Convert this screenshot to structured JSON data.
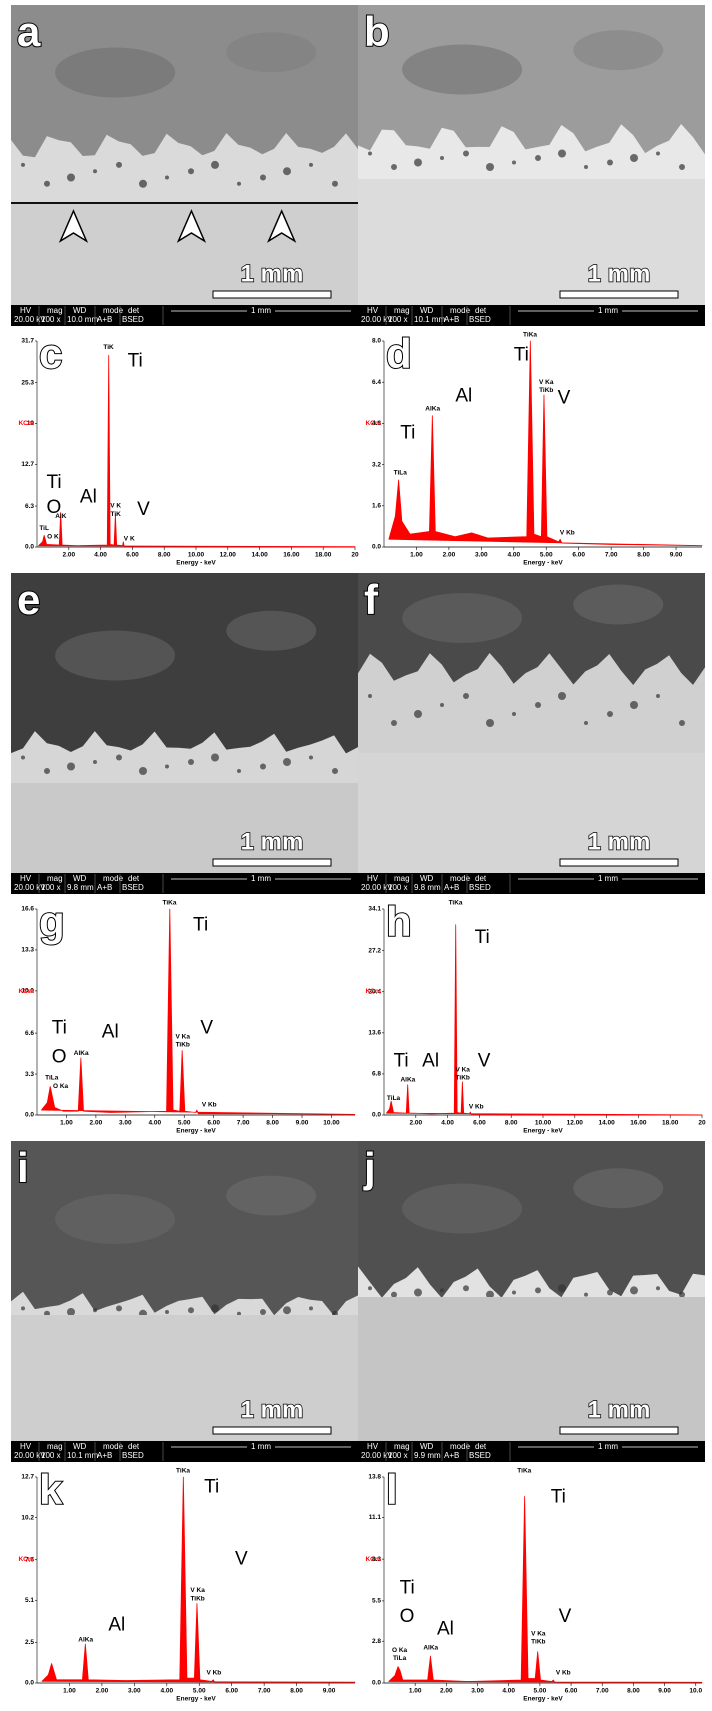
{
  "micrographs": [
    {
      "label": "a",
      "scale_bar": "1 mm",
      "info_headers": [
        "HV",
        "mag",
        "WD",
        "mode",
        "det"
      ],
      "info_values": [
        "20.00 kV",
        "100 x",
        "10.0 mm",
        "A+B",
        "BSED"
      ],
      "info_scale": "1 mm"
    },
    {
      "label": "b",
      "scale_bar": "1 mm",
      "info_headers": [
        "HV",
        "mag",
        "WD",
        "mode",
        "det"
      ],
      "info_values": [
        "20.00 kV",
        "100 x",
        "10.1 mm",
        "A+B",
        "BSED"
      ],
      "info_scale": "1 mm"
    },
    {
      "label": "e",
      "scale_bar": "1 mm",
      "info_headers": [
        "HV",
        "mag",
        "WD",
        "mode",
        "det"
      ],
      "info_values": [
        "20.00 kV",
        "100 x",
        "9.8 mm",
        "A+B",
        "BSED"
      ],
      "info_scale": "1 mm"
    },
    {
      "label": "f",
      "scale_bar": "1 mm",
      "info_headers": [
        "HV",
        "mag",
        "WD",
        "mode",
        "det"
      ],
      "info_values": [
        "20.00 kV",
        "100 x",
        "9.8 mm",
        "A+B",
        "BSED"
      ],
      "info_scale": "1 mm"
    },
    {
      "label": "i",
      "scale_bar": "1 mm",
      "info_headers": [
        "HV",
        "mag",
        "WD",
        "mode",
        "det"
      ],
      "info_values": [
        "20.00 kV",
        "100 x",
        "10.1 mm",
        "A+B",
        "BSED"
      ],
      "info_scale": "1 mm"
    },
    {
      "label": "j",
      "scale_bar": "1 mm",
      "info_headers": [
        "HV",
        "mag",
        "WD",
        "mode",
        "det"
      ],
      "info_values": [
        "20.00 kV",
        "100 x",
        "9.9 mm",
        "A+B",
        "BSED"
      ],
      "info_scale": "1 mm"
    }
  ],
  "chart_data": [
    {
      "type": "spectrum",
      "panel": "c",
      "color": "#ff0000",
      "xlabel": "Energy - keV",
      "ylabel": "KCnt",
      "x": [
        0.1,
        0.35,
        0.45,
        0.52,
        0.6,
        1.4,
        1.49,
        1.58,
        2.5,
        4.42,
        4.51,
        4.6,
        4.85,
        4.93,
        5.01,
        5.38,
        5.43,
        5.48,
        8,
        20
      ],
      "values": [
        0.2,
        0.8,
        1.8,
        1.2,
        0.4,
        0.3,
        5.3,
        0.3,
        0.2,
        0.3,
        29.5,
        0.4,
        0.3,
        5.0,
        0.3,
        0.2,
        0.8,
        0.1,
        0.1,
        0.05
      ],
      "xlim": [
        0,
        20
      ],
      "ylim": [
        0,
        31.7
      ],
      "xticks": [
        {
          "value": 2,
          "label": "2.00"
        },
        {
          "value": 4,
          "label": "4.00"
        },
        {
          "value": 6,
          "label": "6.00"
        },
        {
          "value": 8,
          "label": "8.00"
        },
        {
          "value": 10,
          "label": "10.00"
        },
        {
          "value": 12,
          "label": "12.00"
        },
        {
          "value": 14,
          "label": "14.00"
        },
        {
          "value": 16,
          "label": "16.00"
        },
        {
          "value": 18,
          "label": "18.00"
        },
        20
      ],
      "yticks": [
        {
          "value": 0,
          "label": "0.0"
        },
        6.3,
        12.7,
        19.0,
        25.3,
        31.7
      ],
      "annotations": [
        "TiK",
        "Ti",
        "V K",
        "TiK",
        "V",
        "AlK",
        "Al",
        "Ti",
        "O",
        "TiL",
        "O K",
        "V K"
      ]
    },
    {
      "type": "spectrum",
      "panel": "d",
      "color": "#ff0000",
      "xlabel": "Energy - keV",
      "ylabel": "KCnt",
      "x": [
        0.15,
        0.35,
        0.45,
        0.55,
        0.8,
        1.4,
        1.49,
        1.58,
        2.2,
        2.7,
        3.2,
        4.4,
        4.51,
        4.62,
        4.85,
        4.93,
        5.02,
        5.38,
        5.43,
        5.48,
        7,
        9.8
      ],
      "values": [
        0.3,
        1.2,
        2.6,
        1.0,
        0.5,
        0.6,
        5.1,
        0.6,
        0.4,
        0.55,
        0.35,
        0.4,
        8.0,
        0.5,
        0.4,
        5.9,
        0.4,
        0.2,
        0.3,
        0.15,
        0.1,
        0.05
      ],
      "xlim": [
        0,
        9.8
      ],
      "ylim": [
        0,
        8
      ],
      "xticks": [
        {
          "value": 1,
          "label": "1.00"
        },
        {
          "value": 2,
          "label": "2.00"
        },
        {
          "value": 3,
          "label": "3.00"
        },
        {
          "value": 4,
          "label": "4.00"
        },
        {
          "value": 5,
          "label": "5.00"
        },
        {
          "value": 6,
          "label": "6.00"
        },
        {
          "value": 7,
          "label": "7.00"
        },
        {
          "value": 8,
          "label": "8.00"
        },
        {
          "value": 9,
          "label": "9.00"
        }
      ],
      "yticks": [
        {
          "value": 0,
          "label": "0.0"
        },
        1.6,
        3.2,
        4.8,
        6.4,
        {
          "value": 8,
          "label": "8.0"
        }
      ],
      "annotations": [
        "TiKa",
        "Ti",
        "V Ka",
        "TiKb",
        "V",
        "AlKa",
        "Al",
        "Ti",
        "TiLa",
        "V Kb"
      ]
    },
    {
      "type": "spectrum",
      "panel": "g",
      "color": "#ff0000",
      "xlabel": "Energy - keV",
      "ylabel": "KCnt",
      "x": [
        0.15,
        0.35,
        0.45,
        0.52,
        0.6,
        0.9,
        1.4,
        1.49,
        1.58,
        2.5,
        4.4,
        4.51,
        4.62,
        4.85,
        4.93,
        5.02,
        5.38,
        5.43,
        5.48,
        8,
        10.8
      ],
      "values": [
        0.4,
        1.0,
        2.3,
        1.5,
        0.6,
        0.3,
        0.3,
        4.6,
        0.3,
        0.2,
        0.3,
        16.6,
        0.4,
        0.3,
        5.2,
        0.3,
        0.2,
        0.4,
        0.1,
        0.1,
        0.05
      ],
      "xlim": [
        0,
        10.8
      ],
      "ylim": [
        0,
        16.6
      ],
      "xticks": [
        {
          "value": 1,
          "label": "1.00"
        },
        {
          "value": 2,
          "label": "2.00"
        },
        {
          "value": 3,
          "label": "3.00"
        },
        {
          "value": 4,
          "label": "4.00"
        },
        {
          "value": 5,
          "label": "5.00"
        },
        {
          "value": 6,
          "label": "6.00"
        },
        {
          "value": 7,
          "label": "7.00"
        },
        {
          "value": 8,
          "label": "8.00"
        },
        {
          "value": 9,
          "label": "9.00"
        },
        {
          "value": 10,
          "label": "10.00"
        }
      ],
      "yticks": [
        {
          "value": 0,
          "label": "0.0"
        },
        3.3,
        6.6,
        {
          "value": 10,
          "label": "10.0"
        },
        13.3,
        16.6
      ],
      "annotations": [
        "TiKa",
        "Ti",
        "V Ka",
        "TiKb",
        "V",
        "AlKa",
        "Al",
        "Ti",
        "O",
        "TiLa",
        "O Ka",
        "V Kb"
      ]
    },
    {
      "type": "spectrum",
      "panel": "h",
      "color": "#ff0000",
      "xlabel": "Energy - keV",
      "ylabel": "KCnt",
      "x": [
        0.15,
        0.35,
        0.45,
        0.6,
        1.4,
        1.49,
        1.58,
        3,
        4.42,
        4.51,
        4.6,
        4.85,
        4.93,
        5.01,
        5.38,
        5.43,
        5.48,
        10,
        20
      ],
      "values": [
        0.3,
        1.0,
        2.3,
        0.4,
        0.3,
        5.0,
        0.3,
        0.2,
        0.3,
        31.5,
        0.4,
        0.3,
        5.5,
        0.3,
        0.2,
        0.5,
        0.1,
        0.05,
        0.02
      ],
      "xlim": [
        0,
        20
      ],
      "ylim": [
        0,
        34.1
      ],
      "xticks": [
        {
          "value": 2,
          "label": "2.00"
        },
        {
          "value": 4,
          "label": "4.00"
        },
        {
          "value": 6,
          "label": "6.00"
        },
        {
          "value": 8,
          "label": "8.00"
        },
        {
          "value": 10,
          "label": "10.00"
        },
        {
          "value": 12,
          "label": "12.00"
        },
        {
          "value": 14,
          "label": "14.00"
        },
        {
          "value": 16,
          "label": "16.00"
        },
        {
          "value": 18,
          "label": "18.00"
        },
        20
      ],
      "yticks": [
        {
          "value": 0,
          "label": "0.0"
        },
        6.8,
        13.6,
        20.4,
        27.2,
        34.1
      ],
      "annotations": [
        "TiKa",
        "Ti",
        "V Ka",
        "TiKb",
        "V",
        "AlKa",
        "Al",
        "Ti",
        "TiLa",
        "V Kb"
      ]
    },
    {
      "type": "spectrum",
      "panel": "k",
      "color": "#ff0000",
      "xlabel": "Energy - keV",
      "ylabel": "KCnt",
      "x": [
        0.15,
        0.35,
        0.45,
        0.6,
        1.4,
        1.49,
        1.58,
        2.7,
        4.4,
        4.51,
        4.62,
        4.85,
        4.93,
        5.02,
        5.38,
        5.43,
        5.48,
        9.8
      ],
      "values": [
        0.1,
        0.5,
        1.2,
        0.2,
        0.2,
        2.4,
        0.2,
        0.15,
        0.2,
        12.7,
        0.3,
        0.3,
        4.9,
        0.2,
        0.1,
        0.2,
        0.05,
        0.05
      ],
      "xlim": [
        0,
        9.8
      ],
      "ylim": [
        0,
        12.7
      ],
      "xticks": [
        {
          "value": 1,
          "label": "1.00"
        },
        {
          "value": 2,
          "label": "2.00"
        },
        {
          "value": 3,
          "label": "3.00"
        },
        {
          "value": 4,
          "label": "4.00"
        },
        {
          "value": 5,
          "label": "5.00"
        },
        {
          "value": 6,
          "label": "6.00"
        },
        {
          "value": 7,
          "label": "7.00"
        },
        {
          "value": 8,
          "label": "8.00"
        },
        {
          "value": 9,
          "label": "9.00"
        }
      ],
      "yticks": [
        {
          "value": 0,
          "label": "0.0"
        },
        2.5,
        5.1,
        7.6,
        10.2,
        12.7
      ],
      "annotations": [
        "TiKa",
        "Ti",
        "V Ka",
        "TiKb",
        "V",
        "AlKa",
        "Al",
        "V Kb"
      ]
    },
    {
      "type": "spectrum",
      "panel": "l",
      "color": "#ff0000",
      "xlabel": "Energy - keV",
      "ylabel": "KCnt",
      "x": [
        0.15,
        0.35,
        0.45,
        0.52,
        0.6,
        1.4,
        1.49,
        1.58,
        2.7,
        4.4,
        4.51,
        4.62,
        4.85,
        4.93,
        5.02,
        5.38,
        5.43,
        5.48,
        10.2
      ],
      "values": [
        0.1,
        0.5,
        1.1,
        0.8,
        0.2,
        0.2,
        1.8,
        0.2,
        0.1,
        0.2,
        12.5,
        0.3,
        0.3,
        2.1,
        0.2,
        0.1,
        0.2,
        0.05,
        0.05
      ],
      "xlim": [
        0,
        10.2
      ],
      "ylim": [
        0,
        13.8
      ],
      "xticks": [
        {
          "value": 1,
          "label": "1.00"
        },
        {
          "value": 2,
          "label": "2.00"
        },
        {
          "value": 3,
          "label": "3.00"
        },
        {
          "value": 4,
          "label": "4.00"
        },
        {
          "value": 5,
          "label": "5.00"
        },
        {
          "value": 6,
          "label": "6.00"
        },
        {
          "value": 7,
          "label": "7.00"
        },
        {
          "value": 8,
          "label": "8.00"
        },
        {
          "value": 9,
          "label": "9.00"
        },
        {
          "value": 10,
          "label": "10.0"
        }
      ],
      "yticks": [
        {
          "value": 0,
          "label": "0.0"
        },
        2.8,
        5.5,
        8.3,
        11.1,
        13.8
      ],
      "annotations": [
        "TiKa",
        "Ti",
        "V Ka",
        "TiKb",
        "V",
        "AlKa",
        "Al",
        "Ti",
        "O",
        "O Ka",
        "TiLa",
        "V Kb"
      ]
    }
  ]
}
